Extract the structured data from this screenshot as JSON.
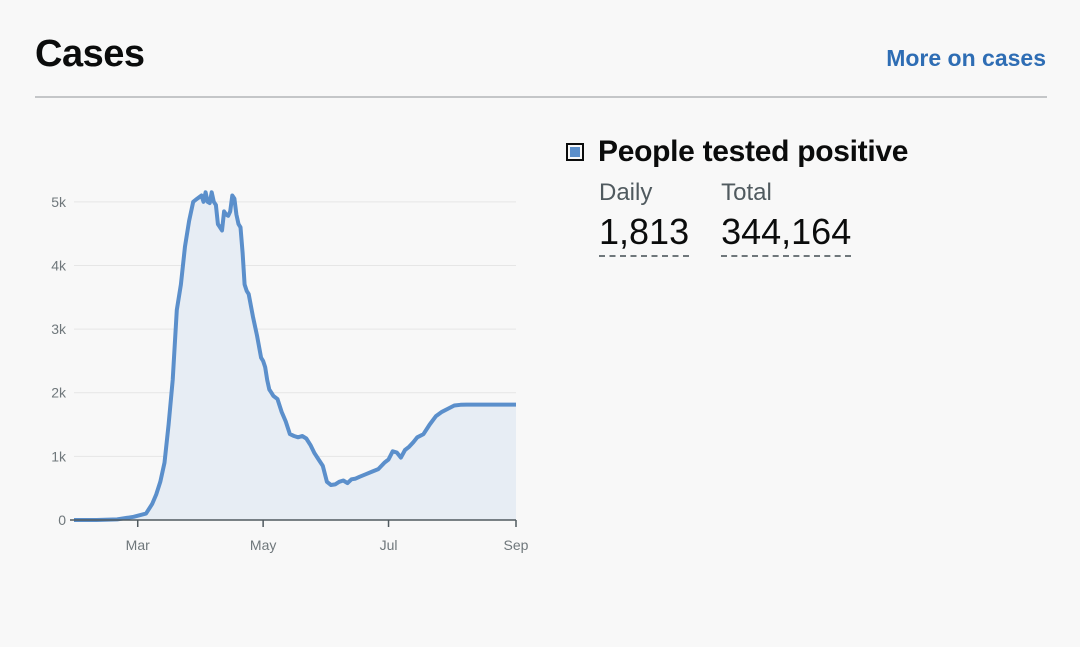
{
  "header": {
    "title": "Cases",
    "more_link": "More on cases"
  },
  "legend": {
    "label": "People tested positive",
    "color": "#5b8fcb"
  },
  "stats": {
    "daily_label": "Daily",
    "daily_value": "1,813",
    "total_label": "Total",
    "total_value": "344,164"
  },
  "chart_data": {
    "type": "area",
    "title": "",
    "xlabel": "",
    "ylabel": "",
    "ylim": [
      0,
      5500
    ],
    "y_ticks": [
      0,
      1000,
      2000,
      3000,
      4000,
      5000
    ],
    "y_tick_labels": [
      "0",
      "1k",
      "2k",
      "3k",
      "4k",
      "5k"
    ],
    "x_ticks": [
      "2020-03-01",
      "2020-05-01",
      "2020-07-01",
      "2020-09-01"
    ],
    "x_tick_labels": [
      "Mar",
      "May",
      "Jul",
      "Sep"
    ],
    "xlim": [
      "2020-01-30",
      "2020-09-01"
    ],
    "grid": true,
    "line_color": "#5b8fcb",
    "fill_color": "#e7edf4",
    "series": [
      {
        "x": [
          "2020-01-30",
          "2020-02-10",
          "2020-02-20",
          "2020-02-28",
          "2020-03-05",
          "2020-03-08",
          "2020-03-10",
          "2020-03-12",
          "2020-03-14",
          "2020-03-16",
          "2020-03-18",
          "2020-03-20",
          "2020-03-22",
          "2020-03-24",
          "2020-03-26",
          "2020-03-28",
          "2020-03-30",
          "2020-04-01",
          "2020-04-02",
          "2020-04-03",
          "2020-04-04",
          "2020-04-05",
          "2020-04-06",
          "2020-04-07",
          "2020-04-08",
          "2020-04-09",
          "2020-04-10",
          "2020-04-11",
          "2020-04-12",
          "2020-04-13",
          "2020-04-14",
          "2020-04-15",
          "2020-04-16",
          "2020-04-17",
          "2020-04-18",
          "2020-04-19",
          "2020-04-20",
          "2020-04-21",
          "2020-04-22",
          "2020-04-23",
          "2020-04-24",
          "2020-04-26",
          "2020-04-28",
          "2020-04-30",
          "2020-05-01",
          "2020-05-02",
          "2020-05-03",
          "2020-05-04",
          "2020-05-05",
          "2020-05-06",
          "2020-05-08",
          "2020-05-10",
          "2020-05-12",
          "2020-05-14",
          "2020-05-16",
          "2020-05-18",
          "2020-05-20",
          "2020-05-22",
          "2020-05-24",
          "2020-05-26",
          "2020-05-28",
          "2020-05-30",
          "2020-06-01",
          "2020-06-03",
          "2020-06-05",
          "2020-06-07",
          "2020-06-09",
          "2020-06-11",
          "2020-06-13",
          "2020-06-15",
          "2020-06-17",
          "2020-06-20",
          "2020-06-23",
          "2020-06-26",
          "2020-06-29",
          "2020-07-01",
          "2020-07-03",
          "2020-07-05",
          "2020-07-07",
          "2020-07-09",
          "2020-07-11",
          "2020-07-13",
          "2020-07-15",
          "2020-07-18",
          "2020-07-21",
          "2020-07-24",
          "2020-07-27",
          "2020-07-30",
          "2020-08-02",
          "2020-08-05",
          "2020-08-08",
          "2020-08-11",
          "2020-08-14",
          "2020-08-17",
          "2020-08-20",
          "2020-08-23",
          "2020-08-26",
          "2020-08-28",
          "2020-08-30",
          "2020-09-01"
        ],
        "y": [
          0,
          0,
          10,
          50,
          100,
          250,
          400,
          600,
          900,
          1500,
          2200,
          3300,
          3700,
          4300,
          4700,
          5000,
          5050,
          5100,
          5000,
          5150,
          5000,
          4980,
          5150,
          5000,
          4950,
          4650,
          4600,
          4550,
          4850,
          4800,
          4780,
          4850,
          5100,
          5050,
          4800,
          4650,
          4600,
          4200,
          3700,
          3600,
          3550,
          3200,
          2900,
          2550,
          2500,
          2400,
          2200,
          2050,
          2000,
          1950,
          1900,
          1700,
          1550,
          1350,
          1320,
          1300,
          1320,
          1280,
          1180,
          1050,
          950,
          850,
          600,
          550,
          560,
          600,
          620,
          580,
          640,
          650,
          680,
          720,
          760,
          800,
          900,
          950,
          1080,
          1060,
          980,
          1100,
          1150,
          1220,
          1300,
          1350,
          1500,
          1630,
          1700,
          1750,
          1800,
          1810,
          1813,
          1813,
          1813,
          1813,
          1813,
          1813,
          1813,
          1813,
          1813,
          1813
        ]
      }
    ]
  }
}
